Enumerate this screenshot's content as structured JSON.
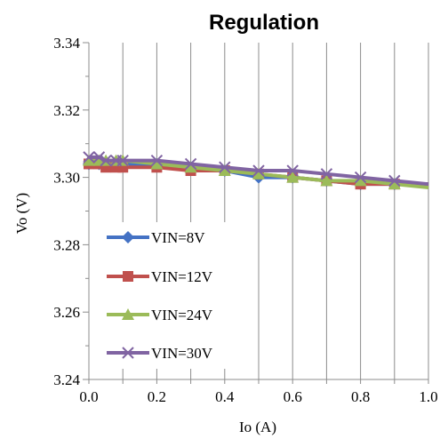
{
  "chart_data": {
    "type": "line",
    "title": "Regulation",
    "xlabel": "Io (A)",
    "ylabel": "Vo (V)",
    "xlim": [
      0,
      1
    ],
    "ylim": [
      3.24,
      3.34
    ],
    "xticks": [
      "0.0",
      "0.2",
      "0.4",
      "0.6",
      "0.8",
      "1.0"
    ],
    "yticks": [
      "3.24",
      "3.26",
      "3.28",
      "3.30",
      "3.32",
      "3.34"
    ],
    "grid": "vertical",
    "legend_position": "bottom-left",
    "series": [
      {
        "name": "VIN=8V",
        "color": "#4472C4",
        "marker": "diamond",
        "x": [
          0.0,
          0.03,
          0.05,
          0.08,
          0.1,
          0.2,
          0.3,
          0.4,
          0.5,
          0.6,
          0.7,
          0.8,
          0.9,
          1.0
        ],
        "y": [
          3.304,
          3.304,
          3.304,
          3.304,
          3.304,
          3.304,
          3.303,
          3.302,
          3.3,
          3.3,
          3.299,
          3.298,
          3.298,
          3.298
        ]
      },
      {
        "name": "VIN=12V",
        "color": "#C0504D",
        "marker": "square",
        "x": [
          0.0,
          0.03,
          0.05,
          0.08,
          0.1,
          0.2,
          0.3,
          0.4,
          0.5,
          0.6,
          0.7,
          0.8,
          0.9,
          1.0
        ],
        "y": [
          3.304,
          3.304,
          3.303,
          3.303,
          3.303,
          3.303,
          3.302,
          3.302,
          3.301,
          3.3,
          3.299,
          3.298,
          3.298,
          3.298
        ]
      },
      {
        "name": "VIN=24V",
        "color": "#9BBB59",
        "marker": "triangle",
        "x": [
          0.0,
          0.03,
          0.05,
          0.08,
          0.1,
          0.2,
          0.3,
          0.4,
          0.5,
          0.6,
          0.7,
          0.8,
          0.9,
          1.0
        ],
        "y": [
          3.305,
          3.305,
          3.305,
          3.305,
          3.305,
          3.304,
          3.303,
          3.302,
          3.301,
          3.3,
          3.299,
          3.299,
          3.298,
          3.297
        ]
      },
      {
        "name": "VIN=30V",
        "color": "#8064A2",
        "marker": "x",
        "x": [
          0.0,
          0.03,
          0.05,
          0.08,
          0.1,
          0.2,
          0.3,
          0.4,
          0.5,
          0.6,
          0.7,
          0.8,
          0.9,
          1.0
        ],
        "y": [
          3.306,
          3.306,
          3.305,
          3.305,
          3.305,
          3.305,
          3.304,
          3.303,
          3.302,
          3.302,
          3.301,
          3.3,
          3.299,
          3.298
        ]
      }
    ]
  }
}
